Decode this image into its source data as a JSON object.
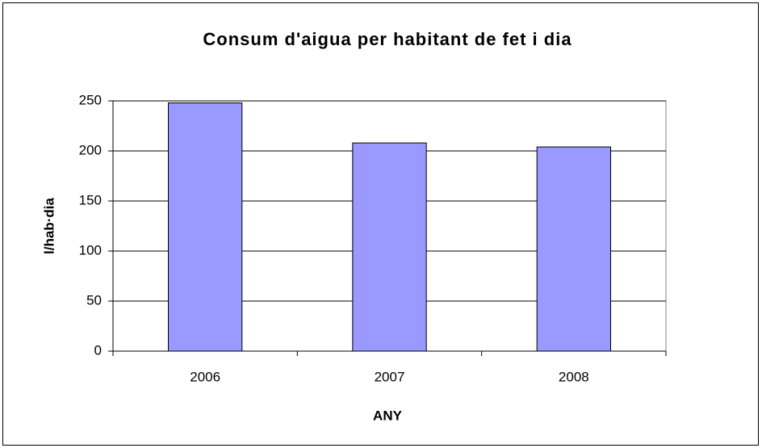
{
  "chart_data": {
    "type": "bar",
    "title": "Consum d'aigua per habitant de fet i dia",
    "x_label": "ANY",
    "y_label": "l/hab·dia",
    "categories": [
      "2006",
      "2007",
      "2008"
    ],
    "values": [
      248,
      208,
      204
    ],
    "color": "#9999ff",
    "ylim": [
      0,
      250
    ],
    "yticks": [
      0,
      50,
      100,
      150,
      200,
      250
    ],
    "grid": true
  }
}
